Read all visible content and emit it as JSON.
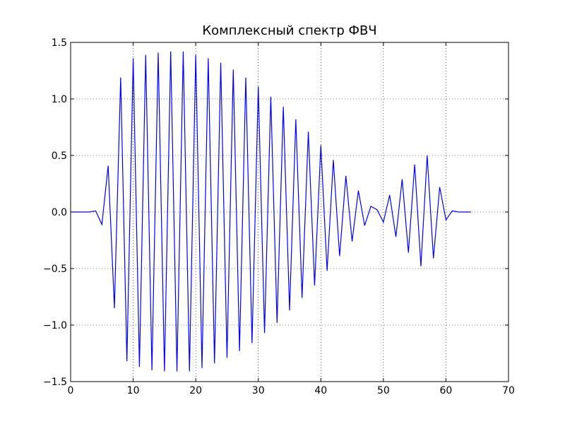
{
  "chart_data": {
    "type": "line",
    "title": "Комплексный спектр ФВЧ",
    "xlabel": "",
    "ylabel": "",
    "xlim": [
      0,
      70
    ],
    "ylim": [
      -1.5,
      1.5
    ],
    "xticks": [
      0,
      10,
      20,
      30,
      40,
      50,
      60,
      70
    ],
    "yticks": [
      -1.5,
      -1.0,
      -0.5,
      0.0,
      0.5,
      1.0,
      1.5
    ],
    "xtick_labels": [
      "0",
      "10",
      "20",
      "30",
      "40",
      "50",
      "60",
      "70"
    ],
    "ytick_labels": [
      "−1.5",
      "−1.0",
      "−0.5",
      "0.0",
      "0.5",
      "1.0",
      "1.5"
    ],
    "grid": true,
    "series": [
      {
        "color": "#0000ff",
        "x": [
          0,
          1,
          2,
          3,
          4,
          5,
          6,
          7,
          8,
          9,
          10,
          11,
          12,
          13,
          14,
          15,
          16,
          17,
          18,
          19,
          20,
          21,
          22,
          23,
          24,
          25,
          26,
          27,
          28,
          29,
          30,
          31,
          32,
          33,
          34,
          35,
          36,
          37,
          38,
          39,
          40,
          41,
          42,
          43,
          44,
          45,
          46,
          47,
          48,
          49,
          50,
          51,
          52,
          53,
          54,
          55,
          56,
          57,
          58,
          59,
          60,
          61,
          62,
          63,
          64
        ],
        "y": [
          0.0,
          0.0,
          0.0,
          0.0,
          0.01,
          -0.11,
          0.41,
          -0.85,
          1.19,
          -1.32,
          1.36,
          -1.37,
          1.39,
          -1.4,
          1.41,
          -1.41,
          1.42,
          -1.41,
          1.42,
          -1.41,
          1.39,
          -1.38,
          1.36,
          -1.34,
          1.32,
          -1.29,
          1.26,
          -1.23,
          1.19,
          -1.16,
          1.11,
          -1.07,
          1.02,
          -0.98,
          0.93,
          -0.87,
          0.82,
          -0.76,
          0.71,
          -0.65,
          0.59,
          -0.52,
          0.46,
          -0.39,
          0.32,
          -0.26,
          0.19,
          -0.12,
          0.05,
          0.02,
          -0.09,
          0.15,
          -0.22,
          0.29,
          -0.36,
          0.42,
          -0.48,
          0.5,
          -0.41,
          0.22,
          -0.07,
          0.01,
          0.0,
          0.0,
          0.0
        ]
      }
    ]
  }
}
